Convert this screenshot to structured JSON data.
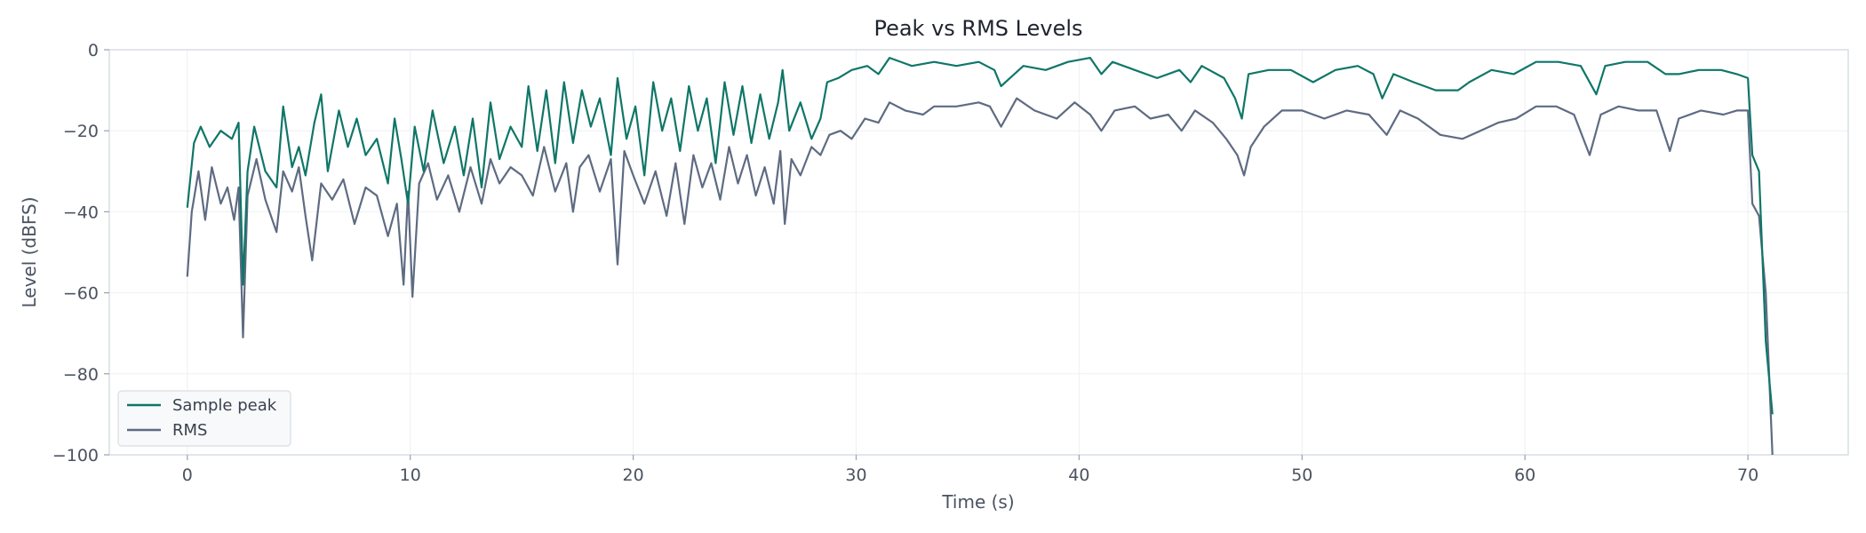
{
  "chart_data": {
    "type": "line",
    "title": "Peak vs RMS Levels",
    "xlabel": "Time (s)",
    "ylabel": "Level (dBFS)",
    "xlim": [
      -3.5,
      74.5
    ],
    "ylim": [
      -100,
      0
    ],
    "xticks": [
      0,
      10,
      20,
      30,
      40,
      50,
      60,
      70
    ],
    "yticks": [
      0,
      -20,
      -40,
      -60,
      -80,
      -100
    ],
    "xtick_labels": [
      "0",
      "10",
      "20",
      "30",
      "40",
      "50",
      "60",
      "70"
    ],
    "ytick_labels": [
      "0",
      "−20",
      "−40",
      "−60",
      "−80",
      "−100"
    ],
    "grid": true,
    "legend_position": "lower-left",
    "series": [
      {
        "name": "Sample peak",
        "color": "#0f7668",
        "points": [
          [
            0,
            -39
          ],
          [
            0.3,
            -23
          ],
          [
            0.6,
            -19
          ],
          [
            1,
            -24
          ],
          [
            1.5,
            -20
          ],
          [
            2,
            -22
          ],
          [
            2.3,
            -18
          ],
          [
            2.5,
            -58
          ],
          [
            2.7,
            -30
          ],
          [
            3,
            -19
          ],
          [
            3.5,
            -30
          ],
          [
            4,
            -34
          ],
          [
            4.3,
            -14
          ],
          [
            4.7,
            -29
          ],
          [
            5,
            -24
          ],
          [
            5.3,
            -31
          ],
          [
            5.7,
            -18
          ],
          [
            6,
            -11
          ],
          [
            6.3,
            -30
          ],
          [
            6.8,
            -15
          ],
          [
            7.2,
            -24
          ],
          [
            7.6,
            -17
          ],
          [
            8,
            -26
          ],
          [
            8.5,
            -22
          ],
          [
            9,
            -33
          ],
          [
            9.3,
            -17
          ],
          [
            9.6,
            -27
          ],
          [
            9.9,
            -38
          ],
          [
            10.2,
            -19
          ],
          [
            10.6,
            -30
          ],
          [
            11,
            -15
          ],
          [
            11.5,
            -28
          ],
          [
            12,
            -19
          ],
          [
            12.4,
            -31
          ],
          [
            12.8,
            -17
          ],
          [
            13.2,
            -34
          ],
          [
            13.6,
            -13
          ],
          [
            14,
            -27
          ],
          [
            14.5,
            -19
          ],
          [
            15,
            -24
          ],
          [
            15.3,
            -9
          ],
          [
            15.7,
            -25
          ],
          [
            16.1,
            -10
          ],
          [
            16.5,
            -28
          ],
          [
            16.9,
            -8
          ],
          [
            17.3,
            -23
          ],
          [
            17.7,
            -10
          ],
          [
            18.1,
            -19
          ],
          [
            18.5,
            -12
          ],
          [
            19,
            -26
          ],
          [
            19.3,
            -7
          ],
          [
            19.7,
            -22
          ],
          [
            20.1,
            -14
          ],
          [
            20.5,
            -31
          ],
          [
            20.9,
            -8
          ],
          [
            21.3,
            -20
          ],
          [
            21.7,
            -12
          ],
          [
            22.1,
            -25
          ],
          [
            22.5,
            -9
          ],
          [
            22.9,
            -20
          ],
          [
            23.3,
            -12
          ],
          [
            23.7,
            -28
          ],
          [
            24.1,
            -8
          ],
          [
            24.5,
            -21
          ],
          [
            24.9,
            -9
          ],
          [
            25.3,
            -23
          ],
          [
            25.7,
            -11
          ],
          [
            26.1,
            -22
          ],
          [
            26.5,
            -13
          ],
          [
            26.7,
            -5
          ],
          [
            27,
            -20
          ],
          [
            27.5,
            -13
          ],
          [
            28,
            -22
          ],
          [
            28.4,
            -17
          ],
          [
            28.7,
            -8
          ],
          [
            29.2,
            -7
          ],
          [
            29.8,
            -5
          ],
          [
            30.5,
            -4
          ],
          [
            31,
            -6
          ],
          [
            31.5,
            -2
          ],
          [
            32.5,
            -4
          ],
          [
            33.5,
            -3
          ],
          [
            34.5,
            -4
          ],
          [
            35.5,
            -3
          ],
          [
            36.2,
            -5
          ],
          [
            36.5,
            -9
          ],
          [
            37.5,
            -4
          ],
          [
            38.5,
            -5
          ],
          [
            39.5,
            -3
          ],
          [
            40.5,
            -2
          ],
          [
            41,
            -6
          ],
          [
            41.5,
            -3
          ],
          [
            42.5,
            -5
          ],
          [
            43.5,
            -7
          ],
          [
            44.5,
            -5
          ],
          [
            45,
            -8
          ],
          [
            45.5,
            -4
          ],
          [
            46.5,
            -7
          ],
          [
            47,
            -12
          ],
          [
            47.3,
            -17
          ],
          [
            47.6,
            -6
          ],
          [
            48.5,
            -5
          ],
          [
            49.5,
            -5
          ],
          [
            50.5,
            -8
          ],
          [
            51.5,
            -5
          ],
          [
            52.5,
            -4
          ],
          [
            53.2,
            -6
          ],
          [
            53.6,
            -12
          ],
          [
            54.1,
            -6
          ],
          [
            55,
            -8
          ],
          [
            56,
            -10
          ],
          [
            57,
            -10
          ],
          [
            57.5,
            -8
          ],
          [
            58.5,
            -5
          ],
          [
            59.5,
            -6
          ],
          [
            60.5,
            -3
          ],
          [
            61.5,
            -3
          ],
          [
            62.5,
            -4
          ],
          [
            63.2,
            -11
          ],
          [
            63.6,
            -4
          ],
          [
            64.5,
            -3
          ],
          [
            65.5,
            -3
          ],
          [
            66.3,
            -6
          ],
          [
            66.9,
            -6
          ],
          [
            67.8,
            -5
          ],
          [
            68.8,
            -5
          ],
          [
            69.5,
            -6
          ],
          [
            70,
            -7
          ],
          [
            70.2,
            -26
          ],
          [
            70.5,
            -30
          ],
          [
            70.8,
            -72
          ],
          [
            71.1,
            -90
          ]
        ]
      },
      {
        "name": "RMS",
        "color": "#5e6b82",
        "points": [
          [
            0,
            -56
          ],
          [
            0.2,
            -40
          ],
          [
            0.5,
            -30
          ],
          [
            0.8,
            -42
          ],
          [
            1.1,
            -29
          ],
          [
            1.5,
            -38
          ],
          [
            1.8,
            -34
          ],
          [
            2.1,
            -42
          ],
          [
            2.3,
            -34
          ],
          [
            2.5,
            -71
          ],
          [
            2.7,
            -36
          ],
          [
            3.1,
            -27
          ],
          [
            3.5,
            -37
          ],
          [
            4,
            -45
          ],
          [
            4.3,
            -30
          ],
          [
            4.7,
            -35
          ],
          [
            5,
            -29
          ],
          [
            5.3,
            -41
          ],
          [
            5.6,
            -52
          ],
          [
            6,
            -33
          ],
          [
            6.5,
            -37
          ],
          [
            7,
            -32
          ],
          [
            7.5,
            -43
          ],
          [
            8,
            -34
          ],
          [
            8.5,
            -36
          ],
          [
            9,
            -46
          ],
          [
            9.4,
            -38
          ],
          [
            9.7,
            -58
          ],
          [
            9.9,
            -35
          ],
          [
            10.1,
            -61
          ],
          [
            10.4,
            -33
          ],
          [
            10.8,
            -28
          ],
          [
            11.2,
            -37
          ],
          [
            11.7,
            -31
          ],
          [
            12.2,
            -40
          ],
          [
            12.7,
            -29
          ],
          [
            13.2,
            -38
          ],
          [
            13.6,
            -27
          ],
          [
            14,
            -33
          ],
          [
            14.5,
            -29
          ],
          [
            15,
            -31
          ],
          [
            15.5,
            -36
          ],
          [
            16,
            -24
          ],
          [
            16.5,
            -35
          ],
          [
            17,
            -28
          ],
          [
            17.3,
            -40
          ],
          [
            17.6,
            -29
          ],
          [
            18,
            -26
          ],
          [
            18.5,
            -35
          ],
          [
            19,
            -27
          ],
          [
            19.3,
            -53
          ],
          [
            19.6,
            -25
          ],
          [
            20,
            -31
          ],
          [
            20.5,
            -38
          ],
          [
            21,
            -30
          ],
          [
            21.5,
            -41
          ],
          [
            21.9,
            -28
          ],
          [
            22.3,
            -43
          ],
          [
            22.7,
            -26
          ],
          [
            23.1,
            -34
          ],
          [
            23.5,
            -28
          ],
          [
            23.9,
            -37
          ],
          [
            24.3,
            -24
          ],
          [
            24.7,
            -33
          ],
          [
            25.1,
            -26
          ],
          [
            25.5,
            -36
          ],
          [
            25.9,
            -29
          ],
          [
            26.3,
            -38
          ],
          [
            26.6,
            -25
          ],
          [
            26.8,
            -43
          ],
          [
            27.1,
            -27
          ],
          [
            27.5,
            -31
          ],
          [
            28,
            -24
          ],
          [
            28.4,
            -26
          ],
          [
            28.8,
            -21
          ],
          [
            29.3,
            -20
          ],
          [
            29.8,
            -22
          ],
          [
            30.4,
            -17
          ],
          [
            31,
            -18
          ],
          [
            31.5,
            -13
          ],
          [
            32.2,
            -15
          ],
          [
            33,
            -16
          ],
          [
            33.5,
            -14
          ],
          [
            34.5,
            -14
          ],
          [
            35.5,
            -13
          ],
          [
            36,
            -14
          ],
          [
            36.5,
            -19
          ],
          [
            37.2,
            -12
          ],
          [
            38,
            -15
          ],
          [
            39,
            -17
          ],
          [
            39.8,
            -13
          ],
          [
            40.5,
            -16
          ],
          [
            41,
            -20
          ],
          [
            41.6,
            -15
          ],
          [
            42.5,
            -14
          ],
          [
            43.2,
            -17
          ],
          [
            44,
            -16
          ],
          [
            44.6,
            -20
          ],
          [
            45.2,
            -15
          ],
          [
            46,
            -18
          ],
          [
            46.6,
            -22
          ],
          [
            47.1,
            -26
          ],
          [
            47.4,
            -31
          ],
          [
            47.7,
            -24
          ],
          [
            48.3,
            -19
          ],
          [
            49.1,
            -15
          ],
          [
            50,
            -15
          ],
          [
            51,
            -17
          ],
          [
            52,
            -15
          ],
          [
            53,
            -16
          ],
          [
            53.8,
            -21
          ],
          [
            54.4,
            -15
          ],
          [
            55.2,
            -17
          ],
          [
            56.2,
            -21
          ],
          [
            57.2,
            -22
          ],
          [
            58,
            -20
          ],
          [
            58.8,
            -18
          ],
          [
            59.6,
            -17
          ],
          [
            60.5,
            -14
          ],
          [
            61.4,
            -14
          ],
          [
            62.2,
            -16
          ],
          [
            62.9,
            -26
          ],
          [
            63.4,
            -16
          ],
          [
            64.2,
            -14
          ],
          [
            65.1,
            -15
          ],
          [
            65.9,
            -15
          ],
          [
            66.5,
            -25
          ],
          [
            66.9,
            -17
          ],
          [
            67.9,
            -15
          ],
          [
            68.9,
            -16
          ],
          [
            69.5,
            -15
          ],
          [
            70,
            -15
          ],
          [
            70.2,
            -38
          ],
          [
            70.5,
            -41
          ],
          [
            70.8,
            -60
          ],
          [
            71.1,
            -100
          ]
        ]
      }
    ]
  }
}
